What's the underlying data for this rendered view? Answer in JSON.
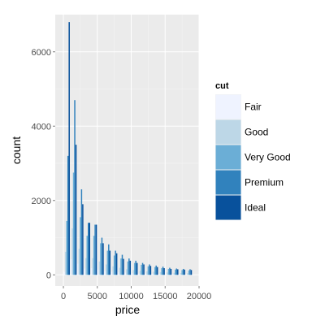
{
  "chart_data": {
    "type": "bar",
    "variant": "dodged-histogram",
    "xlabel": "price",
    "ylabel": "count",
    "xlim": [
      -1200,
      20000
    ],
    "ylim": [
      -300,
      7000
    ],
    "x_ticks": [
      0,
      5000,
      10000,
      15000,
      20000
    ],
    "y_ticks": [
      0,
      2000,
      4000,
      6000
    ],
    "grid": true,
    "legend": {
      "title": "cut",
      "position": "right"
    },
    "colors": {
      "panel": "#ebebeb",
      "grid_major": "#ffffff",
      "Fair": "#eff3ff",
      "Good": "#bdd7e7",
      "Very Good": "#6baed6",
      "Premium": "#3182bd",
      "Ideal": "#08519c"
    },
    "bin_centers": [
      500,
      1500,
      2500,
      3500,
      4500,
      5500,
      6500,
      7500,
      8500,
      9500,
      10500,
      11500,
      12500,
      13500,
      14500,
      15500,
      16500,
      17500,
      18500
    ],
    "series": [
      {
        "name": "Fair",
        "values": [
          80,
          420,
          300,
          170,
          180,
          140,
          100,
          80,
          70,
          60,
          50,
          40,
          35,
          30,
          25,
          20,
          18,
          15,
          12
        ]
      },
      {
        "name": "Good",
        "values": [
          620,
          1250,
          700,
          450,
          450,
          360,
          280,
          230,
          190,
          150,
          130,
          110,
          95,
          85,
          75,
          65,
          55,
          50,
          45
        ]
      },
      {
        "name": "Very Good",
        "values": [
          1450,
          2750,
          1550,
          1050,
          1050,
          850,
          650,
          520,
          440,
          360,
          320,
          270,
          230,
          210,
          180,
          160,
          140,
          130,
          120
        ]
      },
      {
        "name": "Premium",
        "values": [
          3200,
          4700,
          2300,
          1400,
          1350,
          1000,
          820,
          650,
          540,
          440,
          380,
          320,
          280,
          250,
          220,
          190,
          170,
          160,
          150
        ]
      },
      {
        "name": "Ideal",
        "values": [
          6800,
          3500,
          1900,
          1400,
          1350,
          850,
          650,
          580,
          430,
          380,
          320,
          280,
          240,
          210,
          180,
          160,
          150,
          140,
          130
        ]
      }
    ]
  }
}
